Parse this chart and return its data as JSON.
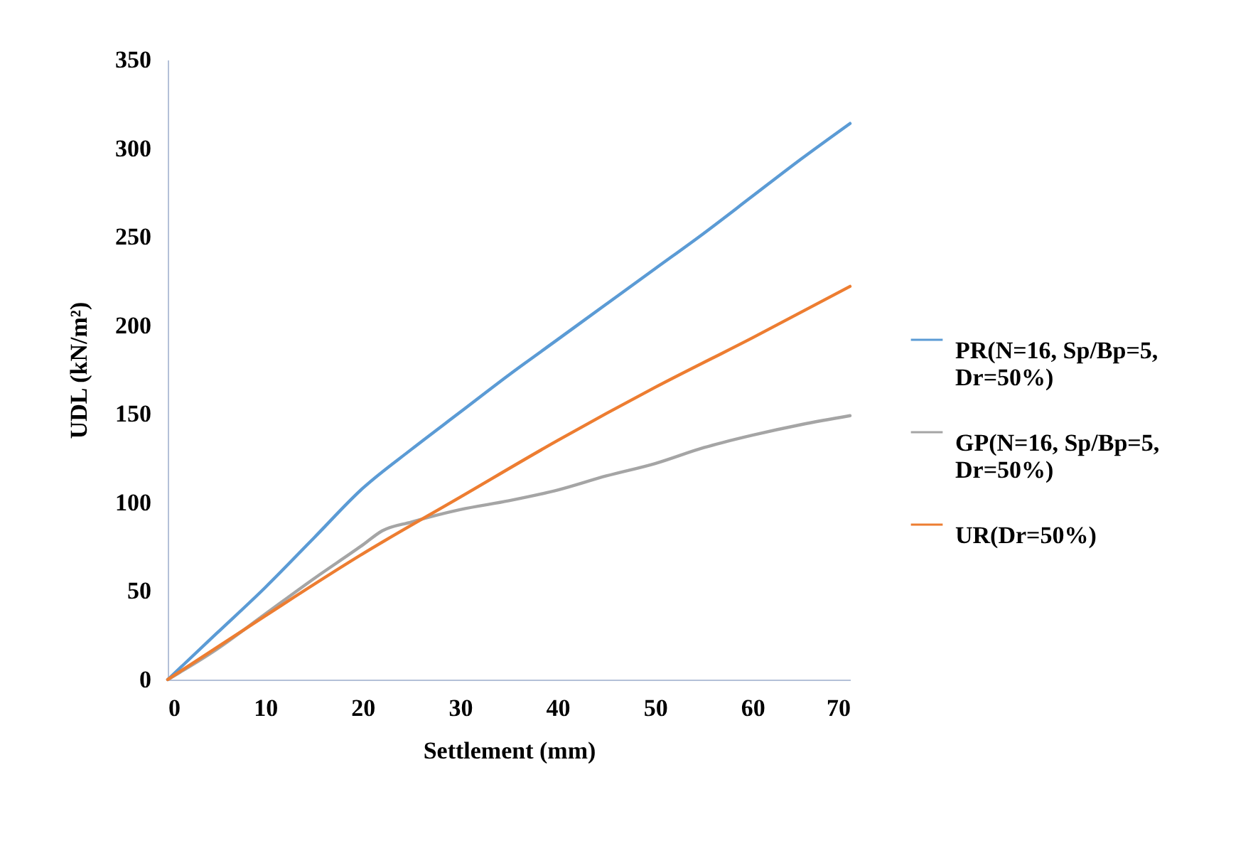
{
  "chart_data": {
    "type": "line",
    "xlabel": "Settlement (mm)",
    "ylabel": "UDL (kN/m²)",
    "xlim": [
      0,
      70
    ],
    "xticks": [
      0,
      10,
      20,
      30,
      40,
      50,
      60,
      70
    ],
    "ylim": [
      0,
      350
    ],
    "yticks": [
      0,
      50,
      100,
      150,
      200,
      250,
      300,
      350
    ],
    "grid": false,
    "legend": "right",
    "series": [
      {
        "name": "PR(N=16, Sp/Bp=5, Dr=50%)",
        "color": "#5b9bd5",
        "x": [
          0,
          5,
          10,
          15,
          20,
          25,
          30,
          35,
          40,
          45,
          50,
          55,
          60,
          65,
          70
        ],
        "values": [
          0,
          26,
          52,
          80,
          108,
          130,
          151,
          172,
          192,
          212,
          232,
          252,
          273,
          294,
          314
        ]
      },
      {
        "name": "GP(N=16, Sp/Bp=5, Dr=50%)",
        "color": "#a5a5a5",
        "x": [
          0,
          5,
          10,
          15,
          20,
          22,
          25,
          30,
          35,
          40,
          45,
          50,
          55,
          60,
          65,
          70
        ],
        "values": [
          0,
          17,
          37,
          57,
          76,
          84,
          89,
          96,
          101,
          107,
          115,
          122,
          131,
          138,
          144,
          149
        ]
      },
      {
        "name": "UR(Dr=50%)",
        "color": "#ed7d31",
        "x": [
          0,
          10,
          20,
          30,
          40,
          50,
          60,
          70
        ],
        "values": [
          0,
          36,
          71,
          103,
          135,
          165,
          193,
          222
        ]
      }
    ]
  }
}
